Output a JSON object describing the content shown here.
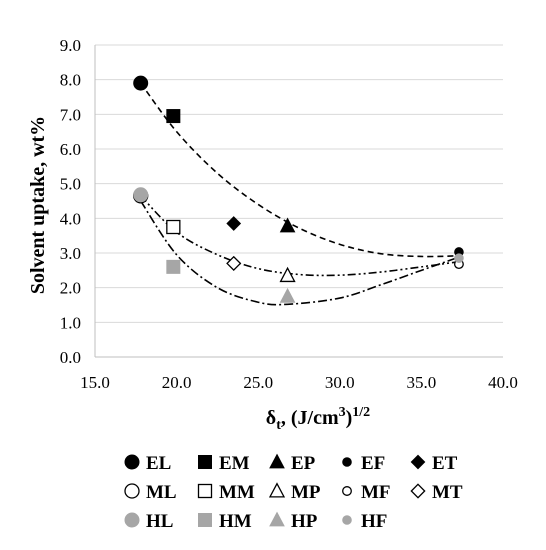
{
  "chart_data": {
    "type": "scatter",
    "xlabel": "δt, (J/cm3)1/2",
    "xlabel_parts": {
      "delta": "δ",
      "sub": "t",
      "mid": ", (J/cm",
      "sup1": "3",
      "close": ")",
      "sup2": "1/2"
    },
    "ylabel": "Solvent uptake, wt%",
    "xlim": [
      15.0,
      40.0
    ],
    "ylim": [
      0.0,
      9.0
    ],
    "x_ticks": [
      "15.0",
      "20.0",
      "25.0",
      "30.0",
      "35.0",
      "40.0"
    ],
    "y_ticks": [
      "0.0",
      "1.0",
      "2.0",
      "3.0",
      "4.0",
      "5.0",
      "6.0",
      "7.0",
      "8.0",
      "9.0"
    ],
    "grid": "horizontal",
    "legend_position": "bottom",
    "series": [
      {
        "name": "EL",
        "marker": "circle",
        "fill": "#000000",
        "size": "large",
        "points": [
          [
            17.8,
            7.9
          ]
        ]
      },
      {
        "name": "EM",
        "marker": "square",
        "fill": "#000000",
        "size": "large",
        "points": [
          [
            19.8,
            6.95
          ]
        ]
      },
      {
        "name": "EP",
        "marker": "triangle",
        "fill": "#000000",
        "size": "large",
        "points": [
          [
            26.8,
            3.78
          ]
        ]
      },
      {
        "name": "EF",
        "marker": "circle",
        "fill": "#000000",
        "size": "small",
        "points": [
          [
            37.3,
            3.03
          ]
        ]
      },
      {
        "name": "ET",
        "marker": "diamond",
        "fill": "#000000",
        "size": "large",
        "points": [
          [
            23.5,
            3.85
          ]
        ]
      },
      {
        "name": "ML",
        "marker": "circle",
        "fill": "#ffffff",
        "size": "large",
        "points": [
          [
            17.8,
            4.65
          ]
        ]
      },
      {
        "name": "MM",
        "marker": "square",
        "fill": "#ffffff",
        "size": "large",
        "points": [
          [
            19.8,
            3.75
          ]
        ]
      },
      {
        "name": "MP",
        "marker": "triangle",
        "fill": "#ffffff",
        "size": "large",
        "points": [
          [
            26.8,
            2.35
          ]
        ]
      },
      {
        "name": "MF",
        "marker": "circle",
        "fill": "#ffffff",
        "size": "small",
        "points": [
          [
            37.3,
            2.68
          ]
        ]
      },
      {
        "name": "MT",
        "marker": "diamond",
        "fill": "#ffffff",
        "size": "large",
        "points": [
          [
            23.5,
            2.7
          ]
        ]
      },
      {
        "name": "HL",
        "marker": "circle",
        "fill": "#a6a6a6",
        "size": "large",
        "points": [
          [
            17.8,
            4.68
          ]
        ]
      },
      {
        "name": "HM",
        "marker": "square",
        "fill": "#a6a6a6",
        "size": "large",
        "points": [
          [
            19.8,
            2.6
          ]
        ]
      },
      {
        "name": "HP",
        "marker": "triangle",
        "fill": "#a6a6a6",
        "size": "large",
        "points": [
          [
            26.8,
            1.75
          ]
        ]
      },
      {
        "name": "HF",
        "marker": "circle",
        "fill": "#a6a6a6",
        "size": "small",
        "points": [
          [
            37.3,
            2.85
          ]
        ]
      }
    ],
    "trendlines": [
      {
        "group": "E",
        "style": "dashed",
        "points": [
          [
            17.8,
            7.9
          ],
          [
            20,
            6.5
          ],
          [
            22.5,
            5.3
          ],
          [
            25,
            4.4
          ],
          [
            27.5,
            3.72
          ],
          [
            30,
            3.25
          ],
          [
            32.5,
            2.98
          ],
          [
            35,
            2.9
          ],
          [
            37.3,
            2.92
          ]
        ]
      },
      {
        "group": "M",
        "style": "dash-dot-dot",
        "points": [
          [
            17.8,
            4.65
          ],
          [
            20,
            3.6
          ],
          [
            22.5,
            2.95
          ],
          [
            25,
            2.55
          ],
          [
            27.5,
            2.38
          ],
          [
            30,
            2.36
          ],
          [
            32.5,
            2.45
          ],
          [
            35,
            2.6
          ],
          [
            37.3,
            2.75
          ]
        ]
      },
      {
        "group": "H",
        "style": "dash-dot",
        "points": [
          [
            17.8,
            4.5
          ],
          [
            20,
            2.95
          ],
          [
            22.5,
            2.0
          ],
          [
            25,
            1.58
          ],
          [
            26.8,
            1.52
          ],
          [
            30,
            1.7
          ],
          [
            32.5,
            2.08
          ],
          [
            35,
            2.5
          ],
          [
            37.3,
            2.88
          ]
        ]
      }
    ]
  }
}
